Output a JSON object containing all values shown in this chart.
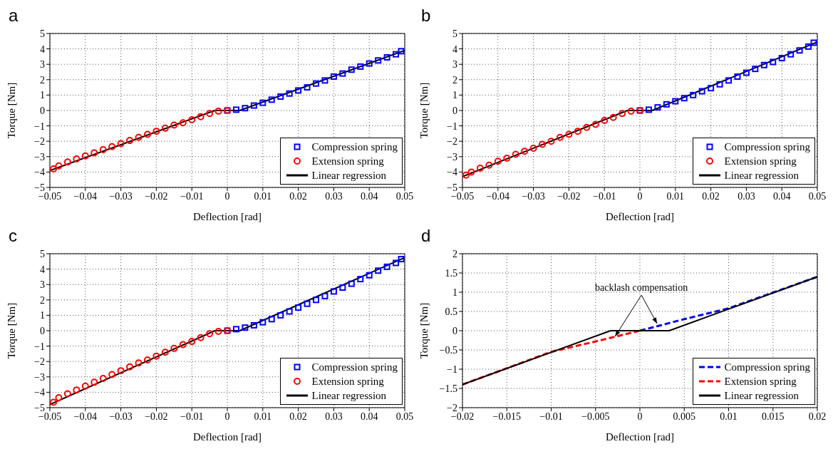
{
  "chart_data": [
    {
      "type": "scatter",
      "title": "a",
      "xlabel": "Deflection [rad]",
      "ylabel": "Torque [Nm]",
      "xlim": [
        -0.05,
        0.05
      ],
      "xticks": [
        -0.05,
        -0.04,
        -0.03,
        -0.02,
        -0.01,
        0,
        0.01,
        0.02,
        0.03,
        0.04,
        0.05
      ],
      "ylim": [
        -5,
        5
      ],
      "yticks": [
        -5,
        -4,
        -3,
        -2,
        -1,
        0,
        1,
        2,
        3,
        4,
        5
      ],
      "grid": true,
      "legend": "bottom right",
      "series": [
        {
          "name": "Compression spring",
          "type": "scatter",
          "marker": "square",
          "color": "#0000ff",
          "x": [
            0,
            0.0025,
            0.005,
            0.0075,
            0.01,
            0.0125,
            0.015,
            0.0175,
            0.02,
            0.0225,
            0.025,
            0.0275,
            0.03,
            0.0325,
            0.035,
            0.0375,
            0.04,
            0.0425,
            0.045,
            0.0475,
            0.049
          ],
          "values": [
            0,
            0.05,
            0.15,
            0.32,
            0.5,
            0.7,
            0.9,
            1.1,
            1.3,
            1.5,
            1.75,
            1.95,
            2.2,
            2.4,
            2.65,
            2.85,
            3.05,
            3.25,
            3.45,
            3.65,
            3.85
          ]
        },
        {
          "name": "Extension spring",
          "type": "scatter",
          "marker": "circle",
          "color": "#ff0000",
          "x": [
            0,
            -0.0025,
            -0.005,
            -0.0075,
            -0.01,
            -0.0125,
            -0.015,
            -0.0175,
            -0.02,
            -0.0225,
            -0.025,
            -0.0275,
            -0.03,
            -0.0325,
            -0.035,
            -0.0375,
            -0.04,
            -0.0425,
            -0.045,
            -0.0475,
            -0.049
          ],
          "values": [
            0,
            -0.05,
            -0.2,
            -0.4,
            -0.6,
            -0.8,
            -0.95,
            -1.15,
            -1.35,
            -1.55,
            -1.75,
            -1.95,
            -2.15,
            -2.35,
            -2.55,
            -2.75,
            -2.95,
            -3.15,
            -3.35,
            -3.6,
            -3.8
          ]
        },
        {
          "name": "Linear regression",
          "type": "line",
          "line_style": "solid",
          "color": "#000000",
          "x": [
            -0.05,
            -0.0035,
            0.0035,
            0.05
          ],
          "values": [
            -3.9,
            0,
            0,
            3.9
          ]
        }
      ]
    },
    {
      "type": "scatter",
      "title": "b",
      "xlabel": "Deflection [rad]",
      "ylabel": "Torque [Nm]",
      "xlim": [
        -0.05,
        0.05
      ],
      "xticks": [
        -0.05,
        -0.04,
        -0.03,
        -0.02,
        -0.01,
        0,
        0.01,
        0.02,
        0.03,
        0.04,
        0.05
      ],
      "ylim": [
        -5,
        5
      ],
      "yticks": [
        -5,
        -4,
        -3,
        -2,
        -1,
        0,
        1,
        2,
        3,
        4,
        5
      ],
      "grid": true,
      "legend": "bottom right",
      "series": [
        {
          "name": "Compression spring",
          "type": "scatter",
          "marker": "square",
          "color": "#0000ff",
          "x": [
            0,
            0.0025,
            0.005,
            0.0075,
            0.01,
            0.0125,
            0.015,
            0.0175,
            0.02,
            0.0225,
            0.025,
            0.0275,
            0.03,
            0.0325,
            0.035,
            0.0375,
            0.04,
            0.0425,
            0.045,
            0.0475,
            0.049
          ],
          "values": [
            0,
            0.05,
            0.2,
            0.4,
            0.6,
            0.8,
            1.0,
            1.25,
            1.45,
            1.7,
            1.95,
            2.2,
            2.45,
            2.7,
            2.95,
            3.15,
            3.4,
            3.65,
            3.9,
            4.15,
            4.4
          ]
        },
        {
          "name": "Extension spring",
          "type": "scatter",
          "marker": "circle",
          "color": "#ff0000",
          "x": [
            0,
            -0.0025,
            -0.005,
            -0.0075,
            -0.01,
            -0.0125,
            -0.015,
            -0.0175,
            -0.02,
            -0.0225,
            -0.025,
            -0.0275,
            -0.03,
            -0.0325,
            -0.035,
            -0.0375,
            -0.04,
            -0.0425,
            -0.045,
            -0.0475,
            -0.049
          ],
          "values": [
            0,
            -0.05,
            -0.2,
            -0.45,
            -0.65,
            -0.9,
            -1.1,
            -1.35,
            -1.55,
            -1.75,
            -2.0,
            -2.2,
            -2.45,
            -2.65,
            -2.85,
            -3.1,
            -3.3,
            -3.55,
            -3.75,
            -4.0,
            -4.2
          ]
        },
        {
          "name": "Linear regression",
          "type": "line",
          "line_style": "solid",
          "color": "#000000",
          "x": [
            -0.05,
            -0.0035,
            0.0035,
            0.05
          ],
          "values": [
            -4.3,
            0,
            0,
            4.45
          ]
        }
      ]
    },
    {
      "type": "scatter",
      "title": "c",
      "xlabel": "Deflection [rad]",
      "ylabel": "Torque [Nm]",
      "xlim": [
        -0.05,
        0.05
      ],
      "xticks": [
        -0.05,
        -0.04,
        -0.03,
        -0.02,
        -0.01,
        0,
        0.01,
        0.02,
        0.03,
        0.04,
        0.05
      ],
      "ylim": [
        -5,
        5
      ],
      "yticks": [
        -5,
        -4,
        -3,
        -2,
        -1,
        0,
        1,
        2,
        3,
        4,
        5
      ],
      "grid": true,
      "legend": "bottom right",
      "series": [
        {
          "name": "Compression spring",
          "type": "scatter",
          "marker": "square",
          "color": "#0000ff",
          "x": [
            0,
            0.0025,
            0.005,
            0.0075,
            0.01,
            0.0125,
            0.015,
            0.0175,
            0.02,
            0.0225,
            0.025,
            0.0275,
            0.03,
            0.0325,
            0.035,
            0.0375,
            0.04,
            0.0425,
            0.045,
            0.0475,
            0.049
          ],
          "values": [
            0,
            0.1,
            0.2,
            0.35,
            0.55,
            0.75,
            1.0,
            1.25,
            1.5,
            1.75,
            2.0,
            2.25,
            2.55,
            2.8,
            3.05,
            3.35,
            3.6,
            3.9,
            4.15,
            4.4,
            4.65
          ]
        },
        {
          "name": "Extension spring",
          "type": "scatter",
          "marker": "circle",
          "color": "#ff0000",
          "x": [
            0,
            -0.0025,
            -0.005,
            -0.0075,
            -0.01,
            -0.0125,
            -0.015,
            -0.0175,
            -0.02,
            -0.0225,
            -0.025,
            -0.0275,
            -0.03,
            -0.0325,
            -0.035,
            -0.0375,
            -0.04,
            -0.0425,
            -0.045,
            -0.0475,
            -0.049
          ],
          "values": [
            0,
            -0.05,
            -0.2,
            -0.45,
            -0.7,
            -0.9,
            -1.15,
            -1.4,
            -1.65,
            -1.9,
            -2.1,
            -2.35,
            -2.6,
            -2.85,
            -3.1,
            -3.35,
            -3.6,
            -3.85,
            -4.1,
            -4.35,
            -4.65
          ]
        },
        {
          "name": "Linear regression",
          "type": "line",
          "line_style": "solid",
          "color": "#000000",
          "x": [
            -0.05,
            -0.0035,
            0.0035,
            0.05
          ],
          "values": [
            -4.8,
            0,
            0,
            4.75
          ]
        }
      ]
    },
    {
      "type": "line",
      "title": "d",
      "xlabel": "Deflection [rad]",
      "ylabel": "Torque [Nm]",
      "xlim": [
        -0.02,
        0.02
      ],
      "xticks": [
        -0.02,
        -0.015,
        -0.01,
        -0.005,
        0,
        0.005,
        0.01,
        0.015,
        0.02
      ],
      "ylim": [
        -2,
        2
      ],
      "yticks": [
        -2,
        -1.5,
        -1,
        -0.5,
        0,
        0.5,
        1,
        1.5,
        2
      ],
      "grid": true,
      "legend": "bottom right",
      "annotations": [
        {
          "text": "backlash compensation",
          "x": -0.0028,
          "y": -0.15
        }
      ],
      "series": [
        {
          "name": "Compression spring",
          "line_style": "dashed",
          "color": "#0000ff",
          "x": [
            0,
            0.005,
            0.01,
            0.02
          ],
          "values": [
            0,
            0.3,
            0.58,
            1.4
          ]
        },
        {
          "name": "Extension spring",
          "line_style": "dashed",
          "color": "#ff0000",
          "x": [
            -0.02,
            -0.01,
            -0.005,
            0
          ],
          "values": [
            -1.4,
            -0.55,
            -0.28,
            0
          ]
        },
        {
          "name": "Linear regression",
          "line_style": "solid",
          "color": "#000000",
          "x": [
            -0.02,
            -0.0033,
            0.0033,
            0.02
          ],
          "values": [
            -1.4,
            0,
            0,
            1.4
          ]
        }
      ]
    }
  ]
}
